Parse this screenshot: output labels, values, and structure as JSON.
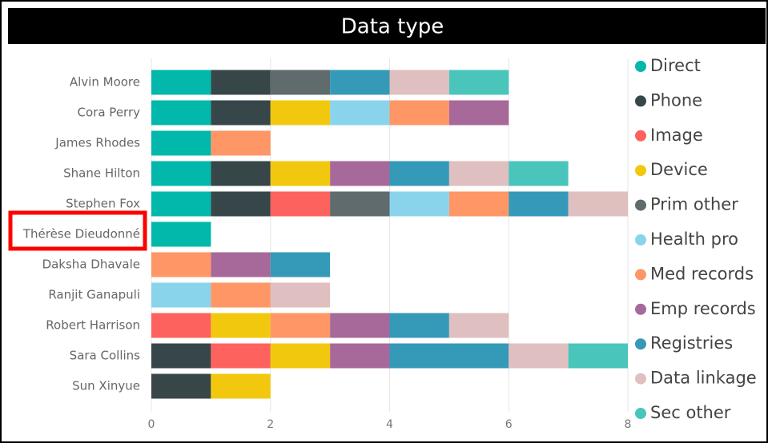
{
  "chart_data": {
    "type": "stacked_barh",
    "title": "Data type",
    "categories": [
      "Alvin Moore",
      "Cora Perry",
      "James Rhodes",
      "Shane Hilton",
      "Stephen Fox",
      "Thérèse Dieudonné",
      "Daksha Dhavale",
      "Ranjit Ganapuli",
      "Robert Harrison",
      "Sara Collins",
      "Sun Xinyue"
    ],
    "series": [
      {
        "name": "Direct",
        "color": "#01b8aa",
        "values": [
          1,
          1,
          1,
          1,
          1,
          1,
          null,
          null,
          null,
          null,
          null
        ]
      },
      {
        "name": "Phone",
        "color": "#374649",
        "values": [
          1,
          1,
          null,
          1,
          1,
          null,
          null,
          null,
          null,
          1,
          1
        ]
      },
      {
        "name": "Image",
        "color": "#fd625e",
        "values": [
          null,
          null,
          null,
          null,
          1,
          null,
          null,
          null,
          1,
          1,
          null
        ]
      },
      {
        "name": "Device",
        "color": "#f2c80f",
        "values": [
          null,
          1,
          null,
          1,
          null,
          null,
          null,
          null,
          1,
          1,
          1
        ]
      },
      {
        "name": "Prim other",
        "color": "#5f6b6d",
        "values": [
          1,
          null,
          null,
          null,
          1,
          null,
          null,
          null,
          null,
          null,
          null
        ]
      },
      {
        "name": "Health pro",
        "color": "#8ad4eb",
        "values": [
          null,
          1,
          null,
          null,
          1,
          null,
          null,
          1,
          null,
          null,
          null
        ]
      },
      {
        "name": "Med records",
        "color": "#fe9666",
        "values": [
          null,
          1,
          1,
          null,
          1,
          null,
          1,
          1,
          1,
          null,
          null
        ]
      },
      {
        "name": "Emp records",
        "color": "#a66999",
        "values": [
          null,
          1,
          null,
          1,
          null,
          null,
          1,
          null,
          1,
          1,
          null
        ]
      },
      {
        "name": "Registries",
        "color": "#3599b8",
        "values": [
          1,
          null,
          null,
          1,
          1,
          null,
          1,
          null,
          1,
          2,
          null
        ]
      },
      {
        "name": "Data linkage",
        "color": "#dfbfbf",
        "values": [
          1,
          null,
          null,
          1,
          1,
          null,
          null,
          1,
          1,
          1,
          null
        ]
      },
      {
        "name": "Sec other",
        "color": "#4ac5bb",
        "values": [
          1,
          null,
          null,
          1,
          null,
          null,
          null,
          null,
          null,
          1,
          null
        ]
      }
    ],
    "xlim": [
      0,
      8
    ],
    "xticks": [
      0,
      2,
      4,
      6,
      8
    ],
    "grid": true
  }
}
